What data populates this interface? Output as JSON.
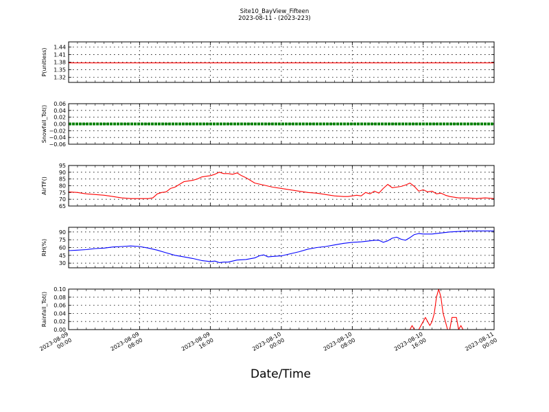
{
  "figure": {
    "title_line1": "Site10_BayView_Fifteen",
    "title_line2": "2023-08-11 - (2023-223)",
    "xlabel": "Date/Time"
  },
  "x_ticks": [
    {
      "line1": "2023-08-09",
      "line2": "00:00",
      "hours": 0
    },
    {
      "line1": "2023-08-09",
      "line2": "08:00",
      "hours": 8
    },
    {
      "line1": "2023-08-09",
      "line2": "16:00",
      "hours": 16
    },
    {
      "line1": "2023-08-10",
      "line2": "00:00",
      "hours": 24
    },
    {
      "line1": "2023-08-10",
      "line2": "08:00",
      "hours": 32
    },
    {
      "line1": "2023-08-10",
      "line2": "16:00",
      "hours": 40
    },
    {
      "line1": "2023-08-11",
      "line2": "00:00",
      "hours": 48
    }
  ],
  "chart_data": [
    {
      "type": "line",
      "ylabel": "P(unitless)",
      "ylim": [
        1.3,
        1.46
      ],
      "yticks": [
        "1.44",
        "1.41",
        "1.38",
        "1.35",
        "1.32"
      ],
      "ytick_values": [
        1.44,
        1.41,
        1.38,
        1.35,
        1.32
      ],
      "grid": true,
      "color": "#ff0000",
      "series": [
        {
          "x": [
            0,
            8,
            16,
            24,
            32,
            40,
            48
          ],
          "y": [
            1.377,
            1.377,
            1.377,
            1.377,
            1.377,
            1.377,
            1.377
          ]
        }
      ]
    },
    {
      "type": "line",
      "ylabel": "Snowfall_Tot()",
      "ylim": [
        -0.06,
        0.06
      ],
      "yticks": [
        "0.06",
        "0.04",
        "0.02",
        "0.00",
        "−0.02",
        "−0.04",
        "−0.06"
      ],
      "ytick_values": [
        0.06,
        0.04,
        0.02,
        0.0,
        -0.02,
        -0.04,
        -0.06
      ],
      "grid": true,
      "color": "#008000",
      "series": [
        {
          "x": [
            0,
            8,
            16,
            24,
            32,
            40,
            48
          ],
          "y": [
            0,
            0,
            0,
            0,
            0,
            0,
            0
          ]
        }
      ]
    },
    {
      "type": "line",
      "ylabel": "AirTF()",
      "ylim": [
        65,
        95
      ],
      "yticks": [
        "95",
        "90",
        "85",
        "80",
        "75",
        "70",
        "65"
      ],
      "ytick_values": [
        95,
        90,
        85,
        80,
        75,
        70,
        65
      ],
      "grid": true,
      "color": "#ff0000",
      "series": [
        {
          "x": [
            0,
            1,
            2,
            3,
            4,
            5,
            6,
            7,
            8,
            9,
            9.5,
            10,
            10.5,
            11,
            11.5,
            12,
            12.5,
            13,
            13.5,
            14,
            14.5,
            15,
            15.5,
            16,
            16.5,
            17,
            17.5,
            18,
            18.5,
            19,
            19.5,
            20,
            21,
            22,
            23,
            24,
            25,
            26,
            27,
            28,
            29,
            30,
            31,
            31.5,
            32,
            32.5,
            33,
            33.5,
            34,
            34.5,
            35,
            35.5,
            36,
            36.5,
            37,
            37.5,
            38,
            38.5,
            39,
            39.5,
            40,
            40.5,
            41,
            41.5,
            42,
            42.5,
            43,
            44,
            45,
            46,
            47,
            48
          ],
          "y": [
            75.5,
            75,
            74,
            73.5,
            73,
            72,
            71,
            70.5,
            70.5,
            70.5,
            71,
            74,
            75,
            75.5,
            78,
            79,
            81,
            83,
            83.5,
            84,
            85,
            86.5,
            87,
            87.5,
            88.5,
            90,
            89,
            89,
            88.5,
            89.5,
            87.5,
            86,
            82,
            80.5,
            79,
            78,
            77,
            76,
            75,
            74.5,
            73.5,
            72.5,
            72,
            72,
            72.5,
            73,
            72.5,
            75,
            74,
            76,
            74.5,
            78,
            81,
            78.5,
            79,
            79.5,
            80.5,
            82,
            79.5,
            76,
            77,
            75.5,
            76,
            74,
            74.5,
            73,
            72,
            71,
            71,
            70.5,
            71,
            70.5
          ]
        }
      ]
    },
    {
      "type": "line",
      "ylabel": "RH(%)",
      "ylim": [
        21,
        99
      ],
      "yticks": [
        "90",
        "75",
        "60",
        "45",
        "30"
      ],
      "ytick_values": [
        90,
        75,
        60,
        45,
        30
      ],
      "grid": true,
      "color": "#0000ff",
      "series": [
        {
          "x": [
            0,
            1,
            2,
            3,
            4,
            5,
            6,
            7,
            8,
            9,
            10,
            11,
            12,
            13,
            14,
            15,
            16,
            16.5,
            17,
            17.5,
            18,
            19,
            20,
            21,
            21.5,
            22,
            22.5,
            23,
            24,
            25,
            26,
            27,
            28,
            29,
            30,
            31,
            32,
            33,
            34,
            34.5,
            35,
            35.5,
            36,
            36.5,
            37,
            37.5,
            38,
            38.5,
            39,
            39.5,
            40,
            41,
            42,
            43,
            44,
            45,
            46,
            47,
            48
          ],
          "y": [
            54,
            55,
            56,
            58,
            59,
            61,
            62,
            63,
            62,
            59,
            55,
            50,
            45,
            42,
            39,
            35,
            33,
            34,
            31,
            32,
            32,
            36,
            37,
            40,
            44,
            46,
            42,
            43,
            44,
            48,
            52,
            57,
            60,
            62,
            65,
            68,
            70,
            71,
            73,
            74,
            74,
            70,
            73,
            78,
            80,
            76,
            74,
            79,
            85,
            87,
            86,
            86,
            88,
            90,
            91,
            92,
            92,
            92,
            92
          ]
        }
      ]
    },
    {
      "type": "line",
      "ylabel": "Rainfall_Tot()",
      "ylim": [
        0,
        0.1
      ],
      "yticks": [
        "0.10",
        "0.08",
        "0.06",
        "0.04",
        "0.02",
        "0.00"
      ],
      "ytick_values": [
        0.1,
        0.08,
        0.06,
        0.04,
        0.02,
        0.0
      ],
      "grid": true,
      "color": "#ff0000",
      "series": [
        {
          "x": [
            0,
            38.5,
            38.75,
            39,
            39.25,
            39.5,
            40,
            40.25,
            40.5,
            40.75,
            41,
            41.25,
            41.5,
            41.75,
            42,
            42.25,
            42.5,
            42.75,
            43,
            43.25,
            43.5,
            43.75,
            44,
            44.25,
            44.5,
            44.75,
            45,
            48
          ],
          "y": [
            0,
            0,
            0.01,
            0,
            0,
            0,
            0.02,
            0.03,
            0.02,
            0.01,
            0.02,
            0.04,
            0.08,
            0.1,
            0.08,
            0.04,
            0.02,
            0,
            0,
            0.03,
            0.03,
            0.03,
            0,
            0.01,
            0,
            0,
            0,
            0
          ]
        }
      ]
    }
  ]
}
